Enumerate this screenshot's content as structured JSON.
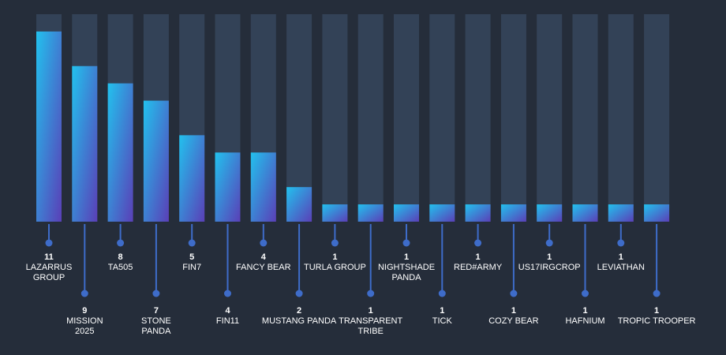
{
  "colors": {
    "background": "#252d3a",
    "track": "#334257",
    "bar_top": "#22c1ee",
    "bar_bottom": "#5a3fb7",
    "connector": "#3e6cc9"
  },
  "chart_data": {
    "type": "bar",
    "title": "",
    "xlabel": "",
    "ylabel": "",
    "ylim": [
      0,
      12
    ],
    "grid": false,
    "categories": [
      "LAZARRUS GROUP",
      "MISSION 2025",
      "TA505",
      "STONE PANDA",
      "FIN7",
      "FIN11",
      "FANCY BEAR",
      "MUSTANG PANDA",
      "TURLA GROUP",
      "TRANSPARENT TRIBE",
      "NIGHTSHADE PANDA",
      "TICK",
      "RED#ARMY",
      "COZY BEAR",
      "US17IRGCROP",
      "HAFNIUM",
      "LEVIATHAN",
      "TROPIC TROOPER"
    ],
    "label_lines": [
      [
        "LAZARRUS",
        "GROUP"
      ],
      [
        "MISSION",
        "2025"
      ],
      [
        "TA505"
      ],
      [
        "STONE",
        "PANDA"
      ],
      [
        "FIN7"
      ],
      [
        "FIN11"
      ],
      [
        "FANCY BEAR"
      ],
      [
        "MUSTANG PANDA"
      ],
      [
        "TURLA GROUP"
      ],
      [
        "TRANSPARENT",
        "TRIBE"
      ],
      [
        "NIGHTSHADE",
        "PANDA"
      ],
      [
        "TICK"
      ],
      [
        "RED#ARMY"
      ],
      [
        "COZY BEAR"
      ],
      [
        "US17IRGCROP"
      ],
      [
        "HAFNIUM"
      ],
      [
        "LEVIATHAN"
      ],
      [
        "TROPIC TROOPER"
      ]
    ],
    "values": [
      11,
      9,
      8,
      7,
      5,
      4,
      4,
      2,
      1,
      1,
      1,
      1,
      1,
      1,
      1,
      1,
      1,
      1
    ]
  }
}
